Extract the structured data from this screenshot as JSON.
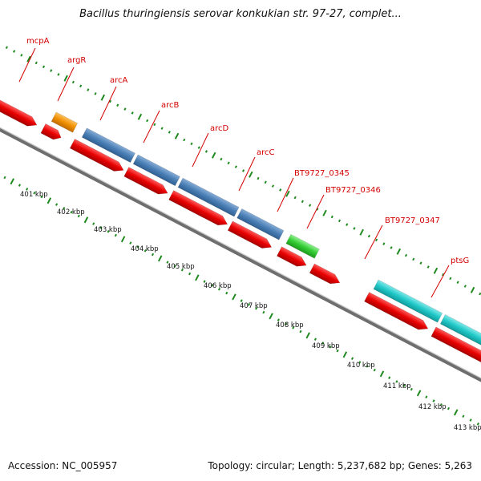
{
  "title": "Bacillus thuringiensis serovar konkukian str. 97-27, complet...",
  "footer": {
    "accession": "Accession: NC_005957",
    "summary": "Topology: circular; Length: 5,237,682 bp; Genes: 5,263"
  },
  "colors": {
    "cds_red": "#e80000",
    "gene_orange": "#f09000",
    "gene_blue": "#4a7fb5",
    "gene_green": "#33cc33",
    "gene_cyan": "#20c8c8",
    "gene_gray": "#bdbdbd",
    "label_red": "#d40000",
    "tick_green": "#1f7a1f",
    "backbone": "#808080"
  },
  "genes": [
    {
      "label": "mcpA"
    },
    {
      "label": "argR"
    },
    {
      "label": "arcA"
    },
    {
      "label": "arcB"
    },
    {
      "label": "arcD"
    },
    {
      "label": "arcC"
    },
    {
      "label": "BT9727_0345"
    },
    {
      "label": "BT9727_0346"
    },
    {
      "label": "BT9727_0347"
    },
    {
      "label": "ptsG"
    }
  ],
  "kbp_ticks": [
    "401 kbp",
    "402 kbp",
    "403 kbp",
    "404 kbp",
    "405 kbp",
    "406 kbp",
    "407 kbp",
    "408 kbp",
    "409 kbp",
    "410 kbp",
    "411 kbp",
    "412 kbp",
    "413 kbp"
  ]
}
